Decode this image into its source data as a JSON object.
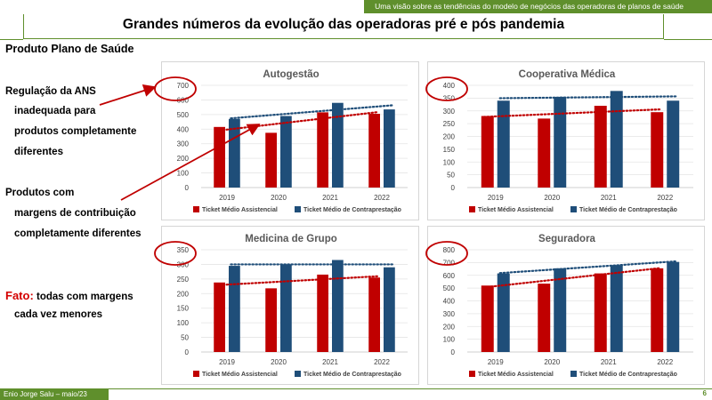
{
  "header": {
    "banner": "Uma visão sobre as tendências do modelo de negócios das operadoras de planos de saúde",
    "title": "Grandes números da evolução das operadoras pré e pós pandemia"
  },
  "section_label": "Produto Plano de Saúde",
  "side_notes": {
    "regulacao": [
      "Regulação  da ANS",
      "inadequada  para",
      "produtos completamente",
      "diferentes"
    ],
    "produtos": [
      "Produtos com",
      "margens de contribuição",
      "completamente diferentes"
    ],
    "fato_label": "Fato:",
    "fato_lines": [
      "todas com margens",
      "cada  vez menores"
    ]
  },
  "footer": {
    "author": "Enio  Jorge Salu – maio/23",
    "page_number": "6"
  },
  "colors": {
    "assistencial": "#c00000",
    "contraprestacao": "#1f4e79",
    "brand_green": "#5f8f2c",
    "annotation": "#c00000"
  },
  "chart_data": [
    {
      "type": "bar",
      "title": "Autogestão",
      "categories": [
        "2019",
        "2020",
        "2021",
        "2022"
      ],
      "ylim": [
        0,
        700
      ],
      "yticks": [
        "0",
        "100",
        "200",
        "300",
        "400",
        "500",
        "600",
        "700"
      ],
      "series": [
        {
          "name": "Ticket Médio Assistencial",
          "values": [
            415,
            375,
            515,
            505
          ]
        },
        {
          "name": "Ticket Médio de Contraprestação",
          "values": [
            470,
            490,
            580,
            535
          ]
        }
      ],
      "trendlines": "dotted linear, one per series",
      "legend": "bottom",
      "grid": true
    },
    {
      "type": "bar",
      "title": "Cooperativa Médica",
      "categories": [
        "2019",
        "2020",
        "2021",
        "2022"
      ],
      "ylim": [
        0,
        400
      ],
      "yticks": [
        "0",
        "50",
        "100",
        "150",
        "200",
        "250",
        "300",
        "350",
        "400"
      ],
      "series": [
        {
          "name": "Ticket Médio Assistencial",
          "values": [
            280,
            270,
            320,
            295
          ]
        },
        {
          "name": "Ticket Médio de Contraprestação",
          "values": [
            340,
            355,
            378,
            340
          ]
        }
      ],
      "trendlines": "dotted linear, one per series",
      "legend": "bottom",
      "grid": true
    },
    {
      "type": "bar",
      "title": "Medicina de Grupo",
      "categories": [
        "2019",
        "2020",
        "2021",
        "2022"
      ],
      "ylim": [
        0,
        350
      ],
      "yticks": [
        "0",
        "50",
        "100",
        "150",
        "200",
        "250",
        "300",
        "350"
      ],
      "series": [
        {
          "name": "Ticket Médio Assistencial",
          "values": [
            238,
            218,
            265,
            255
          ]
        },
        {
          "name": "Ticket Médio de Contraprestação",
          "values": [
            295,
            300,
            315,
            290
          ]
        }
      ],
      "trendlines": "dotted linear, one per series",
      "legend": "bottom",
      "grid": true
    },
    {
      "type": "bar",
      "title": "Seguradora",
      "categories": [
        "2019",
        "2020",
        "2021",
        "2022"
      ],
      "ylim": [
        0,
        800
      ],
      "yticks": [
        "0",
        "100",
        "200",
        "300",
        "400",
        "500",
        "600",
        "700",
        "800"
      ],
      "series": [
        {
          "name": "Ticket Médio Assistencial",
          "values": [
            520,
            535,
            615,
            655
          ]
        },
        {
          "name": "Ticket Médio de Contraprestação",
          "values": [
            615,
            655,
            680,
            705
          ]
        }
      ],
      "trendlines": "dotted linear, one per series",
      "legend": "bottom",
      "grid": true
    }
  ]
}
